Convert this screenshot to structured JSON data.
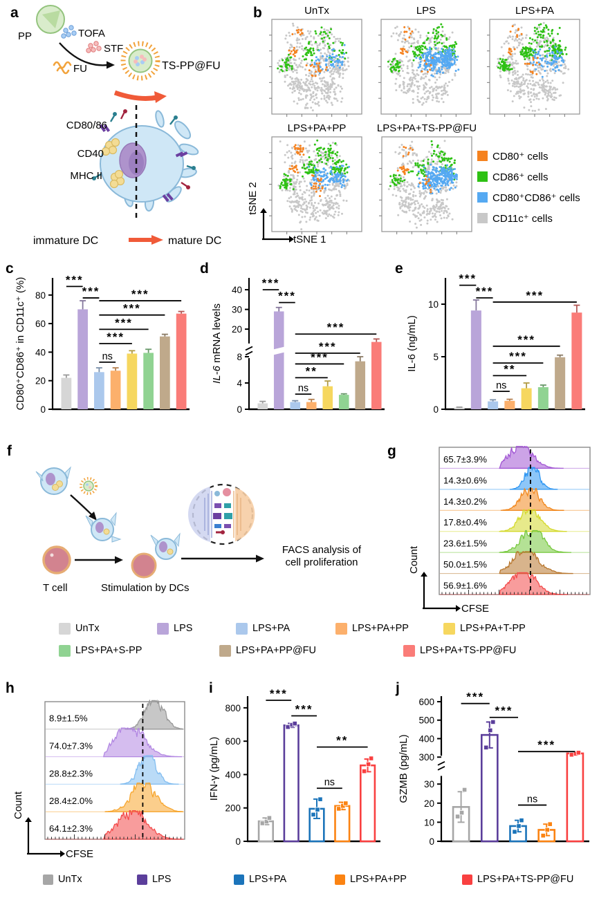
{
  "figure": {
    "panel_labels": {
      "a": "a",
      "b": "b",
      "c": "c",
      "d": "d",
      "e": "e",
      "f": "f",
      "g": "g",
      "h": "h",
      "i": "i",
      "j": "j"
    }
  },
  "panel_a": {
    "pp_label": "PP",
    "tofa_label": "TOFA",
    "stf_label": "STF",
    "fu_label": "FU",
    "product_label": "TS-PP@FU",
    "marker_labels": [
      "CD80/86",
      "CD40",
      "MHC II"
    ],
    "immature_label": "immature DC",
    "mature_label": "mature DC"
  },
  "panel_f": {
    "tcell_label": "T cell",
    "stimulation_label": "Stimulation by DCs",
    "facs_line1": "FACS analysis of",
    "facs_line2": "cell proliferation"
  },
  "groups_full": [
    "UnTx",
    "LPS",
    "LPS+PA",
    "LPS+PA+PP",
    "LPS+PA+T-PP",
    "LPS+PA+S-PP",
    "LPS+PA+PP@FU",
    "LPS+PA+TS-PP@FU"
  ],
  "group_fill_colors": [
    "#d6d6d6",
    "#b9a5d9",
    "#abc8ec",
    "#fcb06c",
    "#f6d75f",
    "#90d392",
    "#bfa98b",
    "#fa7c78"
  ],
  "legend_main": {
    "items": [
      {
        "label": "UnTx",
        "color": "#d6d6d6"
      },
      {
        "label": "LPS",
        "color": "#b9a5d9"
      },
      {
        "label": "LPS+PA",
        "color": "#abc8ec"
      },
      {
        "label": "LPS+PA+PP",
        "color": "#fcb06c"
      },
      {
        "label": "LPS+PA+T-PP",
        "color": "#f6d75f"
      },
      {
        "label": "LPS+PA+S-PP",
        "color": "#90d392"
      },
      {
        "label": "LPS+PA+PP@FU",
        "color": "#bfa98b"
      },
      {
        "label": "LPS+PA+TS-PP@FU",
        "color": "#fa7c78"
      }
    ]
  },
  "legend_bottom": {
    "items": [
      {
        "label": "UnTx",
        "color": "#a6a6a6"
      },
      {
        "label": "LPS",
        "color": "#5b3e9b"
      },
      {
        "label": "LPS+PA",
        "color": "#1b74ba"
      },
      {
        "label": "LPS+PA+PP",
        "color": "#fb8312"
      },
      {
        "label": "LPS+PA+TS-PP@FU",
        "color": "#f94040"
      }
    ]
  },
  "chart_data": [
    {
      "id": "b_tsne",
      "type": "scatter",
      "title": "",
      "xlabel": "tSNE 1",
      "ylabel": "tSNE 2",
      "plots": [
        {
          "title": "UnTx",
          "seed": 11,
          "mix": {
            "orange": 42,
            "green": 95,
            "blue": 60,
            "gray": 520
          }
        },
        {
          "title": "LPS",
          "seed": 22,
          "mix": {
            "orange": 26,
            "green": 135,
            "blue": 290,
            "gray": 370
          }
        },
        {
          "title": "LPS+PA",
          "seed": 33,
          "mix": {
            "orange": 30,
            "green": 210,
            "blue": 85,
            "gray": 420
          }
        },
        {
          "title": "LPS+PA+PP",
          "seed": 44,
          "mix": {
            "orange": 55,
            "green": 175,
            "blue": 115,
            "gray": 430
          }
        },
        {
          "title": "LPS+PA+TS-PP@FU",
          "seed": 55,
          "mix": {
            "orange": 36,
            "green": 115,
            "blue": 265,
            "gray": 380
          }
        }
      ],
      "legend": [
        {
          "label": "CD80⁺ cells",
          "color": "#f5821f"
        },
        {
          "label": "CD86⁺ cells",
          "color": "#2ec114"
        },
        {
          "label": "CD80⁺CD86⁺ cells",
          "color": "#55a9f2"
        },
        {
          "label": "CD11c⁺ cells",
          "color": "#c8c8c8"
        }
      ]
    },
    {
      "id": "c",
      "type": "bar",
      "ylabel": "CD80⁺CD86⁺ in CD11c⁺ (%)",
      "categories": [
        "UnTx",
        "LPS",
        "LPS+PA",
        "LPS+PA+PP",
        "LPS+PA+T-PP",
        "LPS+PA+S-PP",
        "LPS+PA+PP@FU",
        "LPS+PA+TS-PP@FU"
      ],
      "values": [
        22,
        70,
        26,
        27,
        39,
        39.5,
        51,
        67
      ],
      "errors": [
        2,
        6,
        3,
        2,
        2,
        2.5,
        1.5,
        1.5
      ],
      "ylim": [
        0,
        92
      ],
      "yticks": [
        0,
        20,
        40,
        60,
        80
      ],
      "significance": [
        {
          "a": 0,
          "b": 1,
          "label": "***",
          "y": 86
        },
        {
          "a": 1,
          "b": 2,
          "label": "***",
          "y": 78
        },
        {
          "a": 2,
          "b": 3,
          "label": "ns",
          "y": 33
        },
        {
          "a": 2,
          "b": 4,
          "label": "***",
          "y": 46
        },
        {
          "a": 2,
          "b": 5,
          "label": "***",
          "y": 56
        },
        {
          "a": 2,
          "b": 6,
          "label": "***",
          "y": 66
        },
        {
          "a": 2,
          "b": 7,
          "label": "***",
          "y": 76
        }
      ]
    },
    {
      "id": "d",
      "type": "bar-broken",
      "ylabel_parts": [
        {
          "text": "IL-6",
          "italic": true
        },
        {
          "text": " mRNA levels",
          "italic": false
        }
      ],
      "categories": [
        "UnTx",
        "LPS",
        "LPS+PA",
        "LPS+PA+PP",
        "LPS+PA+T-PP",
        "LPS+PA+S-PP",
        "LPS+PA+PP@FU",
        "LPS+PA+TS-PP@FU"
      ],
      "values": [
        0.9,
        29,
        1.1,
        1.1,
        3.5,
        2.2,
        7.3,
        13.5
      ],
      "errors": [
        0.3,
        2,
        0.2,
        0.4,
        0.8,
        0.15,
        0.7,
        1.5
      ],
      "segments": {
        "lower": {
          "dom": [
            0,
            8
          ],
          "ticks": [
            0,
            4,
            8
          ]
        },
        "upper": {
          "dom": [
            12,
            46
          ],
          "ticks": [
            20,
            30,
            40
          ]
        }
      },
      "significance": [
        {
          "a": 0,
          "b": 1,
          "label": "***",
          "y": 40
        },
        {
          "a": 1,
          "b": 2,
          "label": "***",
          "y": 33.5
        },
        {
          "a": 2,
          "b": 3,
          "label": "ns",
          "y": 2.3
        },
        {
          "a": 2,
          "b": 4,
          "label": "**",
          "y": 4.8
        },
        {
          "a": 2,
          "b": 5,
          "label": "***",
          "y": 6.9
        },
        {
          "a": 2,
          "b": 6,
          "label": "***",
          "y": 9.2
        },
        {
          "a": 2,
          "b": 7,
          "label": "***",
          "y": 17.5
        }
      ]
    },
    {
      "id": "e",
      "type": "bar",
      "ylabel": "IL-6 (ng/mL)",
      "categories": [
        "UnTx",
        "LPS",
        "LPS+PA",
        "LPS+PA+PP",
        "LPS+PA+T-PP",
        "LPS+PA+S-PP",
        "LPS+PA+PP@FU",
        "LPS+PA+TS-PP@FU"
      ],
      "values": [
        0.15,
        9.4,
        0.75,
        0.8,
        2.0,
        2.1,
        4.95,
        9.2
      ],
      "errors": [
        0.05,
        1.0,
        0.15,
        0.15,
        0.5,
        0.2,
        0.2,
        0.7
      ],
      "ylim": [
        0,
        12.5
      ],
      "yticks": [
        0,
        5,
        10
      ],
      "significance": [
        {
          "a": 0,
          "b": 1,
          "label": "***",
          "y": 11.8
        },
        {
          "a": 1,
          "b": 2,
          "label": "***",
          "y": 10.6
        },
        {
          "a": 2,
          "b": 7,
          "label": "***",
          "y": 10.2
        },
        {
          "a": 2,
          "b": 3,
          "label": "ns",
          "y": 1.7
        },
        {
          "a": 2,
          "b": 4,
          "label": "**",
          "y": 3.2
        },
        {
          "a": 2,
          "b": 5,
          "label": "***",
          "y": 4.4
        },
        {
          "a": 2,
          "b": 6,
          "label": "***",
          "y": 6.0
        }
      ]
    },
    {
      "id": "g",
      "type": "histogram-stack",
      "xlabel": "CFSE",
      "ylabel": "Count",
      "dash_x": 0.605,
      "rows": [
        {
          "label": "65.7±3.9%",
          "color": "#a257d4",
          "peak": 0.54,
          "spread": 0.075
        },
        {
          "label": "14.3±0.6%",
          "color": "#3097f2",
          "peak": 0.615,
          "spread": 0.045
        },
        {
          "label": "14.3±0.2%",
          "color": "#f2891f",
          "peak": 0.6,
          "spread": 0.06
        },
        {
          "label": "17.8±0.4%",
          "color": "#d4d92b",
          "peak": 0.6,
          "spread": 0.065
        },
        {
          "label": "23.6±1.5%",
          "color": "#77c93e",
          "peak": 0.61,
          "spread": 0.07
        },
        {
          "label": "50.0±1.5%",
          "color": "#b8772e",
          "peak": 0.565,
          "spread": 0.085
        },
        {
          "label": "56.9±1.6%",
          "color": "#f34b4b",
          "peak": 0.55,
          "spread": 0.08
        }
      ]
    },
    {
      "id": "h",
      "type": "histogram-stack",
      "xlabel": "CFSE",
      "ylabel": "Count",
      "dash_x": 0.7,
      "rows": [
        {
          "label": "8.9±1.5%",
          "color": "#999999",
          "peak": 0.78,
          "spread": 0.065
        },
        {
          "label": "74.0±7.3%",
          "color": "#b287e2",
          "peak": 0.6,
          "spread": 0.1
        },
        {
          "label": "28.8±2.3%",
          "color": "#82bdf0",
          "peak": 0.73,
          "spread": 0.06
        },
        {
          "label": "28.4±2.0%",
          "color": "#f7a62e",
          "peak": 0.7,
          "spread": 0.085
        },
        {
          "label": "64.1±2.3%",
          "color": "#f34b4b",
          "peak": 0.62,
          "spread": 0.1
        }
      ]
    },
    {
      "id": "i",
      "type": "bar-open",
      "ylabel": "IFN-γ (pg/mL)",
      "categories": [
        "UnTx",
        "LPS",
        "LPS+PA",
        "LPS+PA+PP",
        "LPS+PA+TS-PP@FU"
      ],
      "values": [
        120,
        695,
        195,
        212,
        455
      ],
      "errors": [
        20,
        12,
        58,
        22,
        38
      ],
      "points": [
        [
          108,
          118,
          140
        ],
        [
          685,
          698,
          706
        ],
        [
          160,
          190,
          252
        ],
        [
          195,
          212,
          228
        ],
        [
          420,
          462,
          497
        ]
      ],
      "colors": [
        "#a6a6a6",
        "#5b3e9b",
        "#1b74ba",
        "#fb8312",
        "#f94040"
      ],
      "ylim": [
        0,
        870
      ],
      "yticks": [
        0,
        200,
        400,
        600,
        800
      ],
      "significance": [
        {
          "a": 0,
          "b": 1,
          "label": "***",
          "y": 845
        },
        {
          "a": 1,
          "b": 2,
          "label": "***",
          "y": 752
        },
        {
          "a": 2,
          "b": 3,
          "label": "ns",
          "y": 318
        },
        {
          "a": 2,
          "b": 4,
          "label": "**",
          "y": 565
        }
      ]
    },
    {
      "id": "j",
      "type": "bar-open-broken",
      "ylabel": "GZMB (pg/mL)",
      "categories": [
        "UnTx",
        "LPS",
        "LPS+PA",
        "LPS+PA+PP",
        "LPS+PA+TS-PP@FU"
      ],
      "values": [
        18,
        420,
        8,
        6,
        320
      ],
      "errors": [
        8,
        70,
        3,
        3,
        8
      ],
      "points": [
        [
          13,
          15,
          27
        ],
        [
          352,
          445,
          490
        ],
        [
          5,
          8,
          11
        ],
        [
          3,
          6,
          9
        ],
        [
          313,
          318,
          324
        ]
      ],
      "colors": [
        "#a6a6a6",
        "#5b3e9b",
        "#1b74ba",
        "#fb8312",
        "#f94040"
      ],
      "segments": {
        "lower": {
          "dom": [
            0,
            35
          ],
          "ticks": [
            0,
            10,
            20,
            30
          ]
        },
        "upper": {
          "dom": [
            300,
            630
          ],
          "ticks": [
            300,
            400,
            500,
            600
          ]
        }
      },
      "significance": [
        {
          "a": 0,
          "b": 1,
          "label": "***",
          "y": 590
        },
        {
          "a": 1,
          "b": 2,
          "label": "***",
          "y": 515
        },
        {
          "a": 2,
          "b": 3,
          "label": "ns",
          "y": 19
        },
        {
          "a": 2,
          "b": 4,
          "label": "***",
          "y": 330
        }
      ]
    }
  ]
}
